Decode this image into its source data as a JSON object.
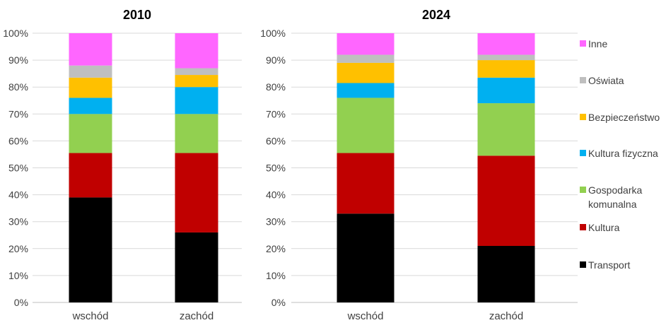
{
  "chart_data": [
    {
      "type": "bar",
      "stacked": true,
      "title": "2010",
      "categories": [
        "wschód",
        "zachód"
      ],
      "ylim": [
        0,
        100
      ],
      "yticks": [
        "0%",
        "10%",
        "20%",
        "30%",
        "40%",
        "50%",
        "60%",
        "70%",
        "80%",
        "90%",
        "100%"
      ],
      "series": [
        {
          "name": "Transport",
          "color": "#000000",
          "values": [
            39,
            26
          ]
        },
        {
          "name": "Kultura",
          "color": "#c00000",
          "values": [
            16.5,
            29.5
          ]
        },
        {
          "name": "Gospodarka komunalna",
          "color": "#92d050",
          "values": [
            14.5,
            14.5
          ]
        },
        {
          "name": "Kultura fizyczna",
          "color": "#00b0f0",
          "values": [
            6,
            10
          ]
        },
        {
          "name": "Bezpieczeństwo",
          "color": "#ffc000",
          "values": [
            7.5,
            4.5
          ]
        },
        {
          "name": "Oświata",
          "color": "#bfbfbf",
          "values": [
            4.5,
            2.5
          ]
        },
        {
          "name": "Inne",
          "color": "#ff66ff",
          "values": [
            12,
            13
          ]
        }
      ]
    },
    {
      "type": "bar",
      "stacked": true,
      "title": "2024",
      "categories": [
        "wschód",
        "zachód"
      ],
      "ylim": [
        0,
        100
      ],
      "yticks": [
        "0%",
        "10%",
        "20%",
        "30%",
        "40%",
        "50%",
        "60%",
        "70%",
        "80%",
        "90%",
        "100%"
      ],
      "legend_position": "right",
      "series": [
        {
          "name": "Transport",
          "color": "#000000",
          "values": [
            33,
            21
          ]
        },
        {
          "name": "Kultura",
          "color": "#c00000",
          "values": [
            22.5,
            33.5
          ]
        },
        {
          "name": "Gospodarka komunalna",
          "color": "#92d050",
          "values": [
            20.5,
            19.5
          ]
        },
        {
          "name": "Kultura fizyczna",
          "color": "#00b0f0",
          "values": [
            5.5,
            9.5
          ]
        },
        {
          "name": "Bezpieczeństwo",
          "color": "#ffc000",
          "values": [
            7.5,
            6.5
          ]
        },
        {
          "name": "Oświata",
          "color": "#bfbfbf",
          "values": [
            3,
            2
          ]
        },
        {
          "name": "Inne",
          "color": "#ff66ff",
          "values": [
            8,
            8
          ]
        }
      ]
    }
  ],
  "legend": {
    "items": [
      {
        "label": "Inne",
        "color": "#ff66ff"
      },
      {
        "label": "Oświata",
        "color": "#bfbfbf"
      },
      {
        "label": "Bezpieczeństwo",
        "color": "#ffc000"
      },
      {
        "label": "Kultura fizyczna",
        "color": "#00b0f0"
      },
      {
        "label": "Gospodarka komunalna",
        "color": "#92d050"
      },
      {
        "label": "Kultura",
        "color": "#c00000"
      },
      {
        "label": "Transport",
        "color": "#000000"
      }
    ]
  }
}
